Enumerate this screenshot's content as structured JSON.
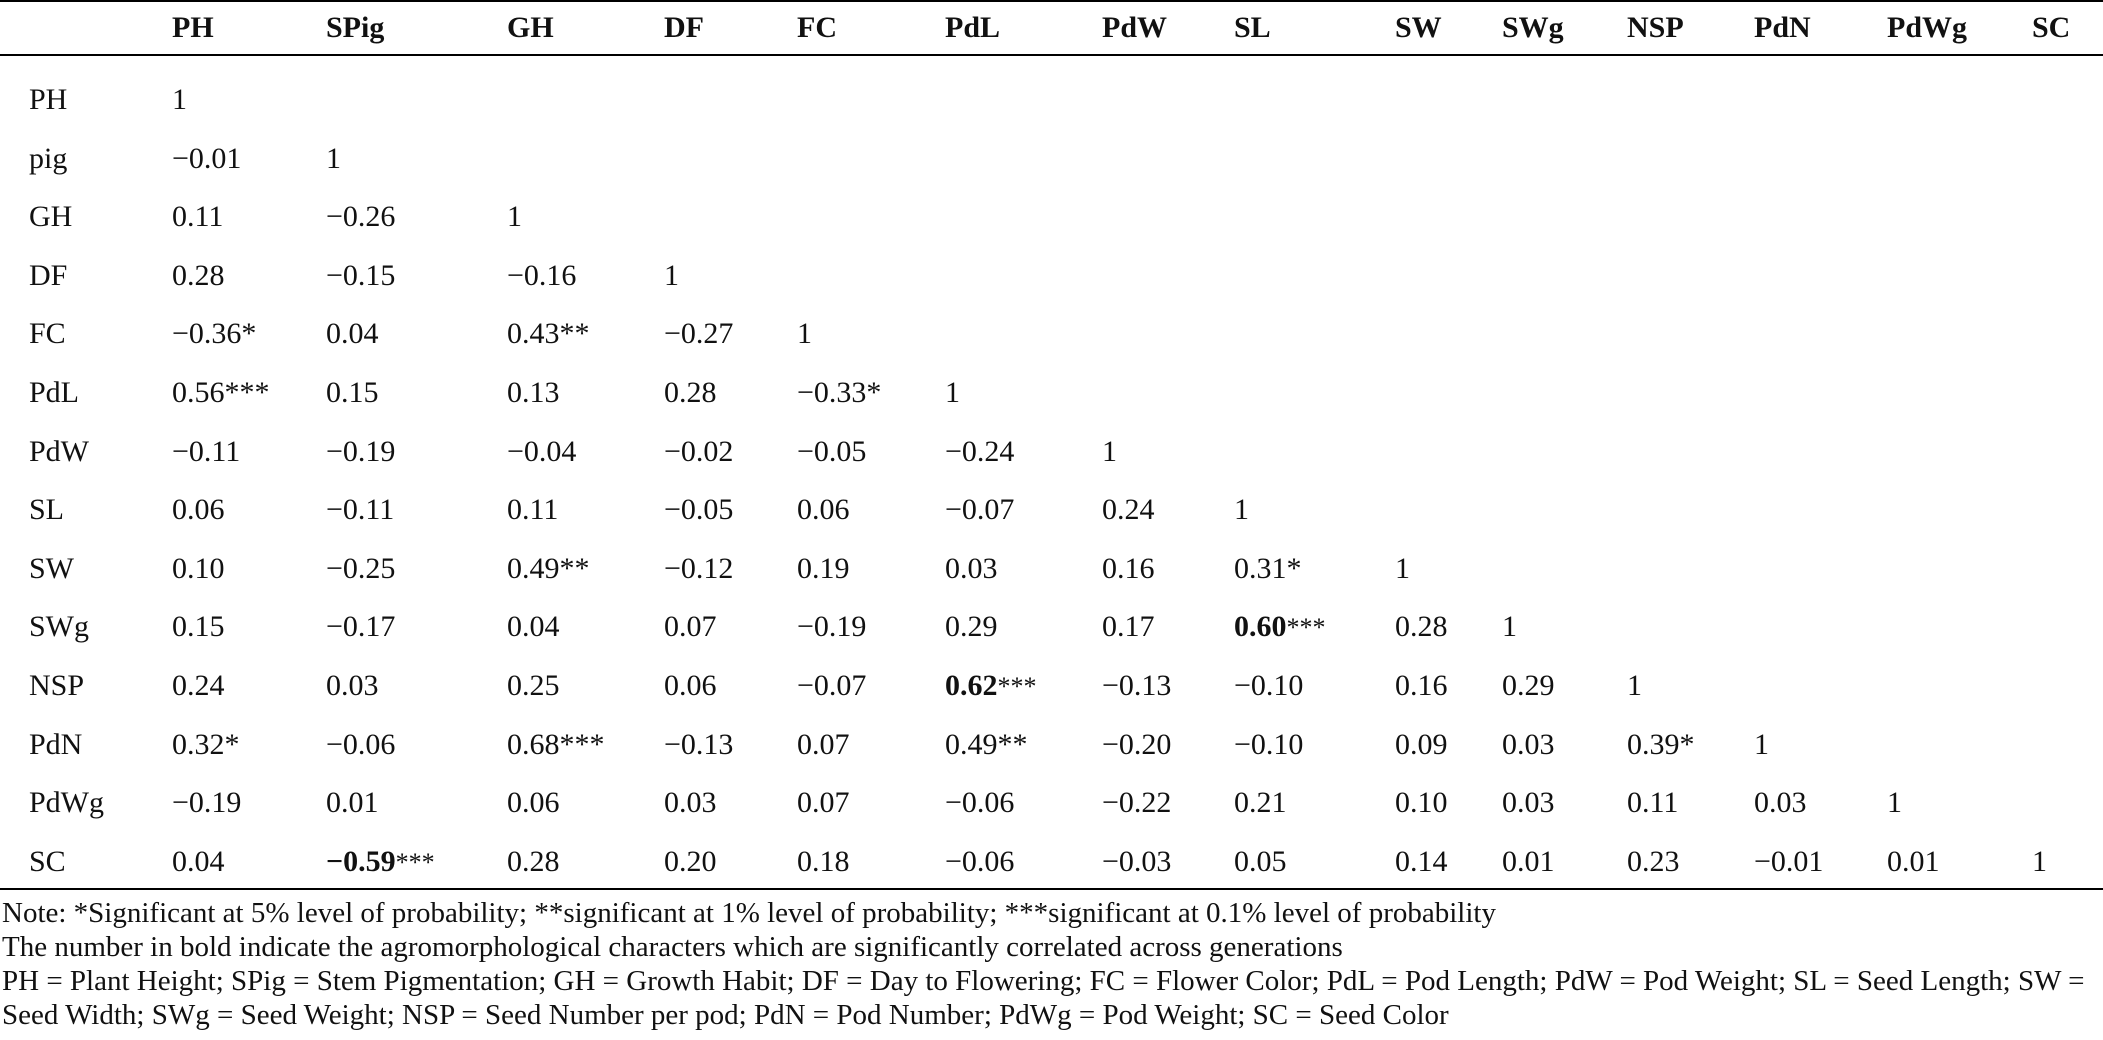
{
  "table": {
    "header": [
      "PH",
      "SPig",
      "GH",
      "DF",
      "FC",
      "PdL",
      "PdW",
      "SL",
      "SW",
      "SWg",
      "NSP",
      "PdN",
      "PdWg",
      "SC"
    ],
    "rows": [
      {
        "label": "PH",
        "cells": [
          {
            "text": "1"
          }
        ]
      },
      {
        "label": "pig",
        "cells": [
          {
            "text": "−0.01"
          },
          {
            "text": "1"
          }
        ]
      },
      {
        "label": "GH",
        "cells": [
          {
            "text": "0.11"
          },
          {
            "text": "−0.26"
          },
          {
            "text": "1"
          }
        ]
      },
      {
        "label": "DF",
        "cells": [
          {
            "text": "0.28"
          },
          {
            "text": "−0.15"
          },
          {
            "text": "−0.16"
          },
          {
            "text": "1"
          }
        ]
      },
      {
        "label": "FC",
        "cells": [
          {
            "text": "−0.36*"
          },
          {
            "text": "0.04"
          },
          {
            "text": "0.43**"
          },
          {
            "text": "−0.27"
          },
          {
            "text": "1"
          }
        ]
      },
      {
        "label": "PdL",
        "cells": [
          {
            "text": "0.56***"
          },
          {
            "text": "0.15"
          },
          {
            "text": "0.13"
          },
          {
            "text": "0.28"
          },
          {
            "text": "−0.33*"
          },
          {
            "text": "1"
          }
        ]
      },
      {
        "label": "PdW",
        "cells": [
          {
            "text": "−0.11"
          },
          {
            "text": "−0.19"
          },
          {
            "text": "−0.04"
          },
          {
            "text": "−0.02"
          },
          {
            "text": "−0.05"
          },
          {
            "text": "−0.24"
          },
          {
            "text": "1"
          }
        ]
      },
      {
        "label": "SL",
        "cells": [
          {
            "text": "0.06"
          },
          {
            "text": "−0.11"
          },
          {
            "text": "0.11"
          },
          {
            "text": "−0.05"
          },
          {
            "text": "0.06"
          },
          {
            "text": "−0.07"
          },
          {
            "text": "0.24"
          },
          {
            "text": "1"
          }
        ]
      },
      {
        "label": "SW",
        "cells": [
          {
            "text": "0.10"
          },
          {
            "text": "−0.25"
          },
          {
            "text": "0.49**"
          },
          {
            "text": "−0.12"
          },
          {
            "text": "0.19"
          },
          {
            "text": "0.03"
          },
          {
            "text": "0.16"
          },
          {
            "text": "0.31*"
          },
          {
            "text": "1"
          }
        ]
      },
      {
        "label": "SWg",
        "cells": [
          {
            "text": "0.15"
          },
          {
            "text": "−0.17"
          },
          {
            "text": "0.04"
          },
          {
            "text": "0.07"
          },
          {
            "text": "−0.19"
          },
          {
            "text": "0.29"
          },
          {
            "text": "0.17"
          },
          {
            "text": "0.60***",
            "bold": true
          },
          {
            "text": "0.28"
          },
          {
            "text": "1"
          }
        ]
      },
      {
        "label": "NSP",
        "cells": [
          {
            "text": "0.24"
          },
          {
            "text": "0.03"
          },
          {
            "text": "0.25"
          },
          {
            "text": "0.06"
          },
          {
            "text": "−0.07"
          },
          {
            "text": "0.62***",
            "bold": true
          },
          {
            "text": "−0.13"
          },
          {
            "text": "−0.10"
          },
          {
            "text": "0.16"
          },
          {
            "text": "0.29"
          },
          {
            "text": "1"
          }
        ]
      },
      {
        "label": "PdN",
        "cells": [
          {
            "text": "0.32*"
          },
          {
            "text": "−0.06"
          },
          {
            "text": "0.68***"
          },
          {
            "text": "−0.13"
          },
          {
            "text": "0.07"
          },
          {
            "text": "0.49**"
          },
          {
            "text": "−0.20"
          },
          {
            "text": "−0.10"
          },
          {
            "text": "0.09"
          },
          {
            "text": "0.03"
          },
          {
            "text": "0.39*"
          },
          {
            "text": "1"
          }
        ]
      },
      {
        "label": "PdWg",
        "cells": [
          {
            "text": "−0.19"
          },
          {
            "text": "0.01"
          },
          {
            "text": "0.06"
          },
          {
            "text": "0.03"
          },
          {
            "text": "0.07"
          },
          {
            "text": "−0.06"
          },
          {
            "text": "−0.22"
          },
          {
            "text": "0.21"
          },
          {
            "text": "0.10"
          },
          {
            "text": "0.03"
          },
          {
            "text": "0.11"
          },
          {
            "text": "0.03"
          },
          {
            "text": "1"
          }
        ]
      },
      {
        "label": "SC",
        "cells": [
          {
            "text": "0.04"
          },
          {
            "text": "−0.59***",
            "bold": true
          },
          {
            "text": "0.28"
          },
          {
            "text": "0.20"
          },
          {
            "text": "0.18"
          },
          {
            "text": "−0.06"
          },
          {
            "text": "−0.03"
          },
          {
            "text": "0.05"
          },
          {
            "text": "0.14"
          },
          {
            "text": "0.01"
          },
          {
            "text": "0.23"
          },
          {
            "text": "−0.01"
          },
          {
            "text": "0.01"
          },
          {
            "text": "1"
          }
        ]
      }
    ]
  },
  "notes": [
    "Note: *Significant at 5% level of probability; **significant at 1% level of probability; ***significant at 0.1% level of probability",
    "The number in bold indicate the agromorphological characters which are significantly correlated across generations",
    "PH = Plant Height; SPig = Stem Pigmentation; GH = Growth Habit; DF = Day to Flowering; FC = Flower Color; PdL = Pod Length; PdW = Pod Weight; SL = Seed Length; SW = Seed Width; SWg = Seed Weight; NSP = Seed Number per pod; PdN = Pod Number; PdWg = Pod Weight; SC = Seed Color"
  ]
}
